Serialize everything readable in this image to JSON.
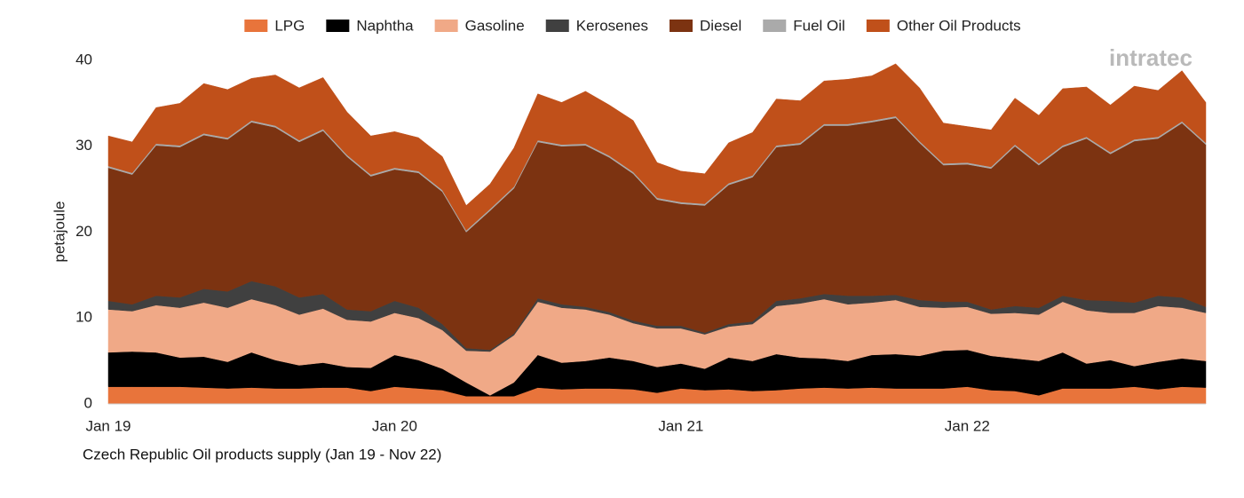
{
  "chart_data": {
    "type": "stacked_area",
    "title": "Czech Republic Oil products supply (Jan 19 - Nov 22)",
    "y_label": "petajoule",
    "logo": "intratec",
    "categories": [
      "Jan 19",
      null,
      null,
      null,
      null,
      null,
      null,
      null,
      null,
      null,
      null,
      null,
      "Jan 20",
      null,
      null,
      null,
      null,
      null,
      null,
      null,
      null,
      null,
      null,
      null,
      "Jan 21",
      null,
      null,
      null,
      null,
      null,
      null,
      null,
      null,
      null,
      null,
      null,
      "Jan 22",
      null,
      null,
      null,
      null,
      null,
      null,
      null,
      null,
      null,
      null
    ],
    "ylim": [
      0,
      40
    ],
    "yticks": [
      0,
      10,
      20,
      30,
      40
    ],
    "grid": false,
    "legend": "top",
    "series": [
      {
        "name": "LPG",
        "color": "#e8743b",
        "values": [
          2.0,
          2.0,
          2.0,
          2.0,
          1.9,
          1.8,
          1.9,
          1.8,
          1.8,
          1.9,
          1.9,
          1.5,
          2.0,
          1.8,
          1.6,
          0.9,
          0.9,
          0.9,
          1.9,
          1.7,
          1.8,
          1.8,
          1.7,
          1.3,
          1.8,
          1.6,
          1.7,
          1.5,
          1.6,
          1.8,
          1.9,
          1.8,
          1.9,
          1.8,
          1.8,
          1.8,
          2.0,
          1.6,
          1.5,
          1.0,
          1.8,
          1.8,
          1.8,
          2.0,
          1.7,
          2.0,
          1.9
        ]
      },
      {
        "name": "Naphtha",
        "color": "#000000",
        "values": [
          4.0,
          4.1,
          4.0,
          3.4,
          3.6,
          3.1,
          4.1,
          3.3,
          2.7,
          2.9,
          2.4,
          2.7,
          3.7,
          3.3,
          2.5,
          1.6,
          0.1,
          1.6,
          3.8,
          3.1,
          3.2,
          3.6,
          3.3,
          3.0,
          2.9,
          2.5,
          3.7,
          3.5,
          4.2,
          3.6,
          3.4,
          3.2,
          3.8,
          4.0,
          3.8,
          4.4,
          4.3,
          4.0,
          3.8,
          4.0,
          4.2,
          2.9,
          3.3,
          2.4,
          3.2,
          3.3,
          3.1
        ]
      },
      {
        "name": "Gasoline",
        "color": "#f0a987",
        "values": [
          5.0,
          4.7,
          5.5,
          5.8,
          6.3,
          6.3,
          6.2,
          6.4,
          5.9,
          6.3,
          5.5,
          5.4,
          4.9,
          4.9,
          4.5,
          3.7,
          5.1,
          5.5,
          6.2,
          6.4,
          6.0,
          5.0,
          4.4,
          4.5,
          4.1,
          4.0,
          3.6,
          4.3,
          5.6,
          6.3,
          6.9,
          6.6,
          6.1,
          6.3,
          5.7,
          5.0,
          5.0,
          4.9,
          5.3,
          5.4,
          5.9,
          6.2,
          5.5,
          6.2,
          6.5,
          5.9,
          5.6
        ]
      },
      {
        "name": "Kerosenes",
        "color": "#404040",
        "values": [
          1.0,
          0.8,
          1.1,
          1.2,
          1.6,
          1.9,
          2.1,
          2.2,
          2.0,
          1.7,
          1.2,
          1.2,
          1.4,
          1.2,
          0.7,
          0.3,
          0.2,
          0.2,
          0.4,
          0.4,
          0.3,
          0.3,
          0.3,
          0.3,
          0.3,
          0.2,
          0.3,
          0.3,
          0.6,
          0.6,
          0.6,
          1.0,
          0.8,
          0.6,
          0.8,
          0.7,
          0.6,
          0.5,
          0.8,
          0.8,
          0.7,
          1.2,
          1.4,
          1.2,
          1.2,
          1.2,
          0.7
        ]
      },
      {
        "name": "Diesel",
        "color": "#7c3311",
        "values": [
          15.5,
          15.1,
          17.5,
          17.5,
          17.9,
          17.7,
          18.5,
          18.5,
          18.1,
          19.0,
          17.8,
          15.7,
          15.3,
          15.7,
          15.4,
          13.5,
          16.2,
          16.9,
          18.2,
          18.4,
          18.8,
          18.0,
          17.1,
          14.7,
          14.2,
          14.8,
          16.2,
          16.8,
          17.9,
          17.9,
          19.6,
          19.8,
          20.2,
          20.6,
          18.3,
          15.9,
          16.0,
          16.4,
          18.6,
          16.6,
          17.3,
          18.8,
          17.1,
          18.8,
          18.3,
          20.3,
          18.9
        ]
      },
      {
        "name": "Fuel Oil",
        "color": "#aaaaaa",
        "values": [
          0.2,
          0.2,
          0.2,
          0.2,
          0.2,
          0.2,
          0.2,
          0.2,
          0.2,
          0.2,
          0.2,
          0.2,
          0.2,
          0.2,
          0.2,
          0.2,
          0.2,
          0.2,
          0.2,
          0.2,
          0.2,
          0.2,
          0.2,
          0.2,
          0.2,
          0.2,
          0.2,
          0.2,
          0.2,
          0.2,
          0.2,
          0.2,
          0.2,
          0.2,
          0.2,
          0.2,
          0.2,
          0.2,
          0.2,
          0.2,
          0.2,
          0.2,
          0.2,
          0.2,
          0.2,
          0.2,
          0.2
        ]
      },
      {
        "name": "Other Oil Products",
        "color": "#c0501a",
        "values": [
          3.5,
          3.6,
          4.2,
          4.9,
          5.8,
          5.6,
          4.9,
          5.9,
          6.1,
          6.0,
          5.0,
          4.5,
          4.2,
          3.9,
          3.9,
          2.9,
          2.9,
          4.5,
          5.4,
          4.9,
          6.1,
          5.9,
          6.0,
          4.1,
          3.6,
          3.5,
          4.7,
          5.0,
          5.4,
          4.9,
          5.0,
          5.2,
          5.2,
          6.1,
          6.2,
          4.7,
          4.2,
          4.3,
          5.4,
          5.6,
          6.6,
          5.8,
          5.5,
          6.2,
          5.4,
          5.9,
          4.7
        ]
      }
    ]
  }
}
